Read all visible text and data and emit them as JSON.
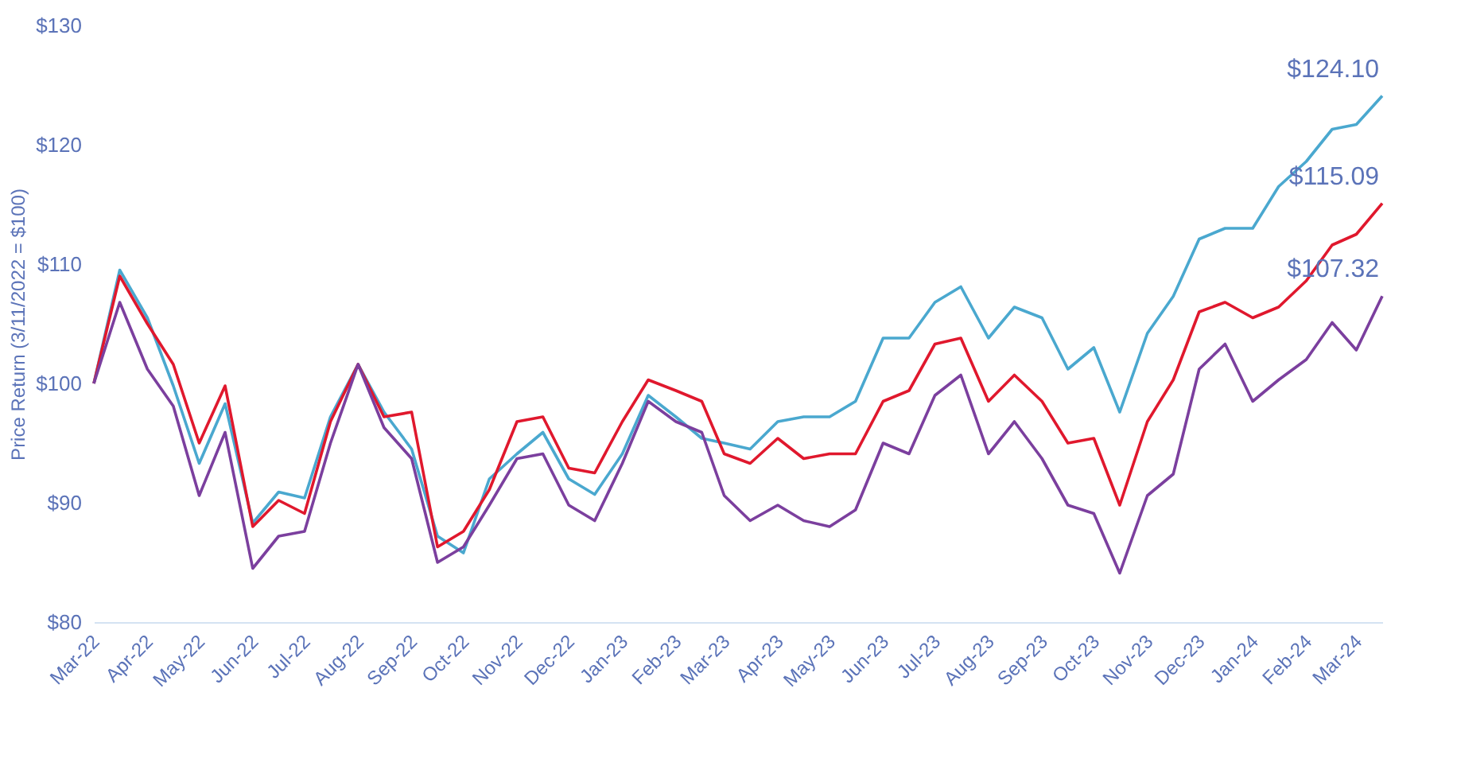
{
  "chart_data": {
    "type": "line",
    "ylabel": "Price Return (3/11/2022 = $100)",
    "x": [
      "2022-03-11",
      "2022-03-26",
      "2022-04-11",
      "2022-04-26",
      "2022-05-11",
      "2022-05-26",
      "2022-06-11",
      "2022-06-26",
      "2022-07-11",
      "2022-07-26",
      "2022-08-11",
      "2022-08-26",
      "2022-09-11",
      "2022-09-26",
      "2022-10-11",
      "2022-10-26",
      "2022-11-11",
      "2022-11-26",
      "2022-12-11",
      "2022-12-26",
      "2023-01-11",
      "2023-01-26",
      "2023-02-11",
      "2023-02-26",
      "2023-03-11",
      "2023-03-26",
      "2023-04-11",
      "2023-04-26",
      "2023-05-11",
      "2023-05-26",
      "2023-06-11",
      "2023-06-26",
      "2023-07-11",
      "2023-07-26",
      "2023-08-11",
      "2023-08-26",
      "2023-09-11",
      "2023-09-26",
      "2023-10-11",
      "2023-10-26",
      "2023-11-11",
      "2023-11-26",
      "2023-12-11",
      "2023-12-26",
      "2024-01-11",
      "2024-01-26",
      "2024-02-11",
      "2024-02-26",
      "2024-03-11",
      "2024-03-26"
    ],
    "series": [
      {
        "color": "#4aa8cf",
        "values": [
          100,
          109.5,
          105.5,
          99.8,
          93.3,
          98.3,
          88.3,
          90.9,
          90.4,
          97.2,
          101.6,
          97.6,
          94.5,
          87.2,
          85.8,
          92,
          94.1,
          95.9,
          92,
          90.7,
          94.1,
          99,
          97.2,
          95.4,
          95,
          94.5,
          96.8,
          97.2,
          97.2,
          98.5,
          103.8,
          103.8,
          106.8,
          108.1,
          103.8,
          106.4,
          105.5,
          101.2,
          103,
          97.6,
          104.2,
          107.3,
          112.1,
          113,
          113,
          116.5,
          118.6,
          121.3,
          121.7,
          124.1
        ]
      },
      {
        "color": "#e0182d",
        "values": [
          100,
          109,
          105,
          101.6,
          95,
          99.8,
          88,
          90.2,
          89.1,
          96.8,
          101.6,
          97.2,
          97.6,
          86.3,
          87.6,
          91.1,
          96.8,
          97.2,
          92.9,
          92.5,
          96.8,
          100.3,
          99.4,
          98.5,
          94.1,
          93.3,
          95.4,
          93.7,
          94.1,
          94.1,
          98.5,
          99.4,
          103.3,
          103.8,
          98.5,
          100.7,
          98.5,
          95,
          95.4,
          89.8,
          96.8,
          100.3,
          106,
          106.8,
          105.5,
          106.4,
          108.6,
          111.6,
          112.5,
          115.09
        ]
      },
      {
        "color": "#7b3f9e",
        "values": [
          100,
          106.8,
          101.2,
          98.1,
          90.6,
          95.9,
          84.5,
          87.2,
          87.6,
          95,
          101.6,
          96.3,
          93.7,
          85,
          86.3,
          89.8,
          93.7,
          94.1,
          89.8,
          88.5,
          93.3,
          98.5,
          96.8,
          95.9,
          90.6,
          88.5,
          89.8,
          88.5,
          88,
          89.4,
          95,
          94.1,
          99,
          100.7,
          94.1,
          96.8,
          93.7,
          89.8,
          89.1,
          84.1,
          90.6,
          92.4,
          101.2,
          103.3,
          98.5,
          100.3,
          102,
          105.1,
          102.8,
          107.32
        ]
      }
    ],
    "xlim": [
      "2022-03-11",
      "2024-03-26"
    ],
    "xticks": [
      {
        "value": "2022-03-11",
        "label": "Mar-22"
      },
      {
        "value": "2022-04-11",
        "label": "Apr-22"
      },
      {
        "value": "2022-05-11",
        "label": "May-22"
      },
      {
        "value": "2022-06-11",
        "label": "Jun-22"
      },
      {
        "value": "2022-07-11",
        "label": "Jul-22"
      },
      {
        "value": "2022-08-11",
        "label": "Aug-22"
      },
      {
        "value": "2022-09-11",
        "label": "Sep-22"
      },
      {
        "value": "2022-10-11",
        "label": "Oct-22"
      },
      {
        "value": "2022-11-11",
        "label": "Nov-22"
      },
      {
        "value": "2022-12-11",
        "label": "Dec-22"
      },
      {
        "value": "2023-01-11",
        "label": "Jan-23"
      },
      {
        "value": "2023-02-11",
        "label": "Feb-23"
      },
      {
        "value": "2023-03-11",
        "label": "Mar-23"
      },
      {
        "value": "2023-04-11",
        "label": "Apr-23"
      },
      {
        "value": "2023-05-11",
        "label": "May-23"
      },
      {
        "value": "2023-06-11",
        "label": "Jun-23"
      },
      {
        "value": "2023-07-11",
        "label": "Jul-23"
      },
      {
        "value": "2023-08-11",
        "label": "Aug-23"
      },
      {
        "value": "2023-09-11",
        "label": "Sep-23"
      },
      {
        "value": "2023-10-11",
        "label": "Oct-23"
      },
      {
        "value": "2023-11-11",
        "label": "Nov-23"
      },
      {
        "value": "2023-12-11",
        "label": "Dec-23"
      },
      {
        "value": "2024-01-11",
        "label": "Jan-24"
      },
      {
        "value": "2024-02-11",
        "label": "Feb-24"
      },
      {
        "value": "2024-03-11",
        "label": "Mar-24"
      }
    ],
    "ylim": [
      80,
      130
    ],
    "yticks": [
      {
        "value": 80,
        "label": "$80"
      },
      {
        "value": 90,
        "label": "$90"
      },
      {
        "value": 100,
        "label": "$100"
      },
      {
        "value": 110,
        "label": "$110"
      },
      {
        "value": 120,
        "label": "$120"
      },
      {
        "value": 130,
        "label": "$130"
      }
    ],
    "annotations": [
      {
        "text": "$124.10",
        "x": "2024-03-26",
        "y": 124.1
      },
      {
        "text": "$115.09",
        "x": "2024-03-26",
        "y": 115.09
      },
      {
        "text": "$107.32",
        "x": "2024-03-26",
        "y": 107.32
      }
    ]
  }
}
